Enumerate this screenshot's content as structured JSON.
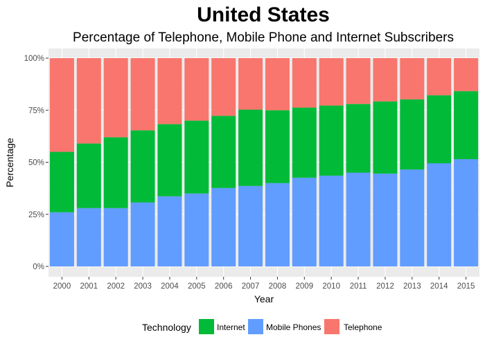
{
  "chart_data": {
    "type": "bar",
    "stacked": true,
    "percent": true,
    "title": "United States",
    "subtitle": "Percentage of Telephone, Mobile Phone and Internet Subscribers",
    "xlabel": "Year",
    "ylabel": "Percentage",
    "ylim": [
      0,
      100
    ],
    "y_ticks": [
      "0%",
      "25%",
      "50%",
      "75%",
      "100%"
    ],
    "y_tick_values": [
      0,
      25,
      50,
      75,
      100
    ],
    "grid": true,
    "legend_position": "bottom",
    "legend_title": "Technology",
    "categories": [
      "2000",
      "2001",
      "2002",
      "2003",
      "2004",
      "2005",
      "2006",
      "2007",
      "2008",
      "2009",
      "2010",
      "2011",
      "2012",
      "2013",
      "2014",
      "2015"
    ],
    "series": [
      {
        "name": "Mobile Phones",
        "color": "#619CFF",
        "values": [
          26,
          28,
          28,
          31,
          34,
          35,
          38,
          39,
          40,
          43,
          44,
          45,
          45,
          47,
          50,
          52
        ]
      },
      {
        "name": "Internet",
        "color": "#00BA38",
        "values": [
          29,
          31,
          34,
          35,
          35,
          35,
          35,
          37,
          35,
          34,
          34,
          33,
          35,
          34,
          33,
          33
        ]
      },
      {
        "name": "Telephone",
        "color": "#F8766D",
        "values": [
          45,
          41,
          38,
          35,
          32,
          30,
          28,
          25,
          25,
          24,
          23,
          22,
          21,
          20,
          18,
          16
        ]
      }
    ],
    "legend_order": [
      "Internet",
      "Mobile Phones",
      "Telephone"
    ]
  }
}
